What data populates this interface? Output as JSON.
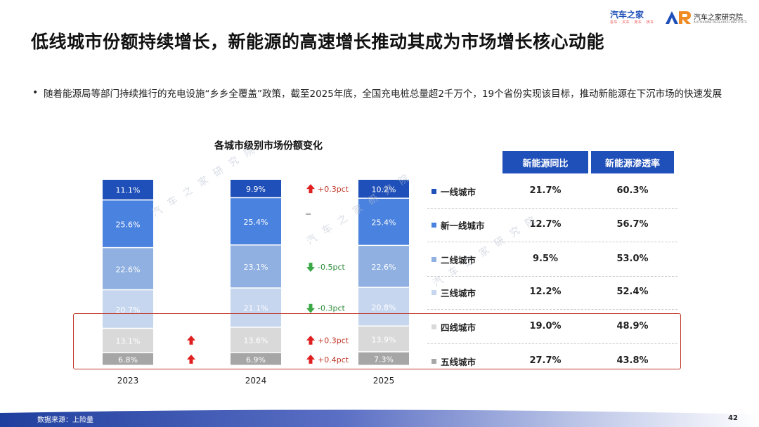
{
  "header": {
    "title": "低线城市份额持续增长，新能源的高速增长推动其成为市场增长核心动能",
    "brand_logo_text": "汽车之家",
    "brand_logo_sub": "看车 · 买车 · 用车 · 换车",
    "institute_logo_text": "汽车之家研究院",
    "institute_logo_sub": "AUTOHOME RESEARCH INSTITUTE"
  },
  "bullet": {
    "text": "随着能源局等部门持续推行的充电设施“乡乡全覆盖”政策，截至2025年底，全国充电桩总量超2千万个，19个省份实现该目标，推动新能源在下沉市场的快速发展"
  },
  "watermark": {
    "text": "汽车之家研究院"
  },
  "chart_data": {
    "type": "bar",
    "stacked": true,
    "normalized": true,
    "title": "各城市级别市场份额变化",
    "categories": [
      "2023",
      "2024",
      "2025"
    ],
    "series": [
      {
        "name": "一线城市",
        "values": [
          11.1,
          9.9,
          10.2
        ],
        "color": "#1f4fb8"
      },
      {
        "name": "新一线城市",
        "values": [
          25.6,
          25.4,
          25.4
        ],
        "color": "#4a82df"
      },
      {
        "name": "二线城市",
        "values": [
          22.6,
          23.1,
          22.6
        ],
        "color": "#8fb0e0"
      },
      {
        "name": "三线城市",
        "values": [
          20.7,
          21.1,
          20.8
        ],
        "color": "#c6d6ef"
      },
      {
        "name": "四线城市",
        "values": [
          13.1,
          13.6,
          13.9
        ],
        "color": "#d9d9d9"
      },
      {
        "name": "五线城市",
        "values": [
          6.8,
          6.9,
          7.3
        ],
        "color": "#a6a6a6"
      }
    ],
    "value_labels": [
      [
        "11.1%",
        "9.9%",
        "10.2%"
      ],
      [
        "25.6%",
        "25.4%",
        "25.4%"
      ],
      [
        "22.6%",
        "23.1%",
        "22.6%"
      ],
      [
        "20.7%",
        "21.1%",
        "20.8%"
      ],
      [
        "13.1%",
        "13.6%",
        "13.9%"
      ],
      [
        "6.8%",
        "6.9%",
        "7.3%"
      ]
    ],
    "change_2023_2024": [
      {
        "series": "四线城市",
        "direction": "up",
        "label": ""
      },
      {
        "series": "五线城市",
        "direction": "up",
        "label": ""
      }
    ],
    "change_2024_2025": [
      {
        "series": "一线城市",
        "direction": "up",
        "label": "+0.3pct"
      },
      {
        "series": "新一线城市",
        "direction": "flat",
        "label": "="
      },
      {
        "series": "二线城市",
        "direction": "down",
        "label": "-0.5pct"
      },
      {
        "series": "三线城市",
        "direction": "down",
        "label": "-0.3pct"
      },
      {
        "series": "四线城市",
        "direction": "up",
        "label": "+0.3pct"
      },
      {
        "series": "五线城市",
        "direction": "up",
        "label": "+0.4pct"
      }
    ],
    "colors": {
      "up": "#e02020",
      "down": "#3aa845",
      "flat": "#999999"
    }
  },
  "table": {
    "headers": [
      "新能源同比",
      "新能源渗透率"
    ],
    "rows": [
      {
        "label": "一线城市",
        "color": "#1f4fb8",
        "yoy": "21.7%",
        "penetration": "60.3%"
      },
      {
        "label": "新一线城市",
        "color": "#4a82df",
        "yoy": "12.7%",
        "penetration": "56.7%"
      },
      {
        "label": "二线城市",
        "color": "#8fb0e0",
        "yoy": "9.5%",
        "penetration": "53.0%"
      },
      {
        "label": "三线城市",
        "color": "#c6d6ef",
        "yoy": "12.2%",
        "penetration": "52.4%"
      },
      {
        "label": "四线城市",
        "color": "#d9d9d9",
        "yoy": "19.0%",
        "penetration": "48.9%"
      },
      {
        "label": "五线城市",
        "color": "#a6a6a6",
        "yoy": "27.7%",
        "penetration": "43.8%"
      }
    ]
  },
  "footer": {
    "source": "数据来源：上险量",
    "page_number": "42"
  }
}
